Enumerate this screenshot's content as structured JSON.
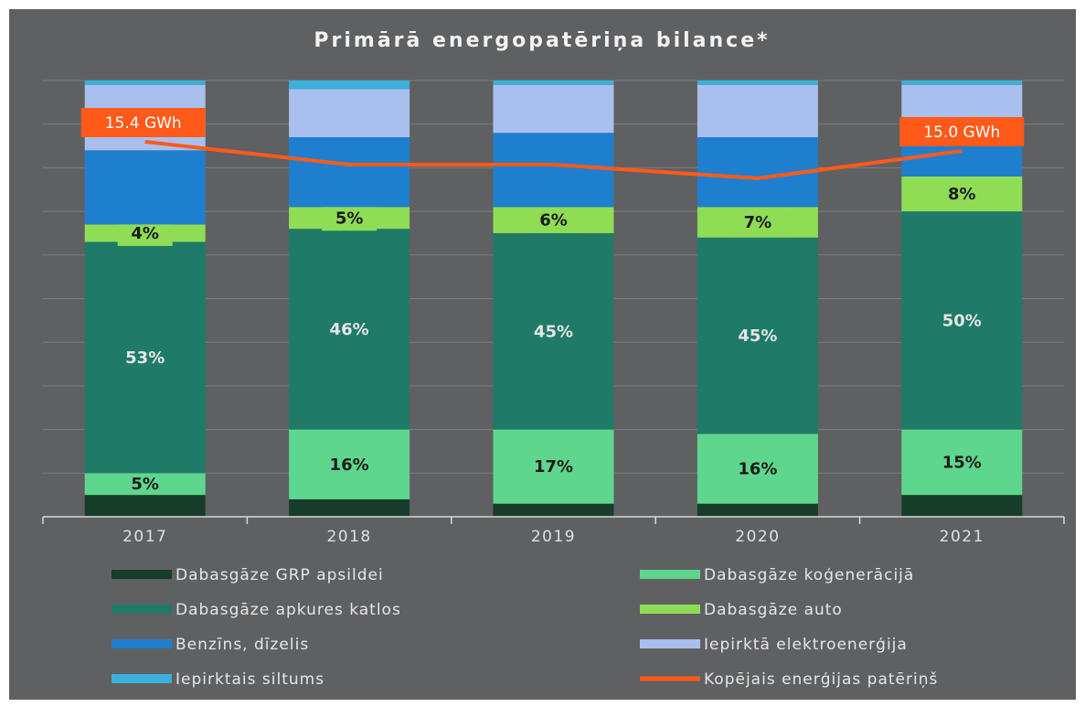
{
  "chart_data": {
    "type": "stacked_bar",
    "title": "Primārā energopatēriņa bilance*",
    "categories": [
      "2017",
      "2018",
      "2019",
      "2020",
      "2021"
    ],
    "ylim": [
      0,
      100
    ],
    "yticks": [
      0,
      10,
      20,
      30,
      40,
      50,
      60,
      70,
      80,
      90,
      100
    ],
    "grid": true,
    "legend": "bottom",
    "series": [
      {
        "name": "Dabasgāze GRP apsildei",
        "color": "#173d2a",
        "values": [
          5,
          4,
          3,
          3,
          5
        ]
      },
      {
        "name": "Dabasgāze koģenerācijā",
        "color": "#5fd68e",
        "values": [
          5,
          16,
          17,
          16,
          15
        ],
        "value_labels": [
          "5%",
          "16%",
          "17%",
          "16%",
          "15%"
        ]
      },
      {
        "name": "Dabasgāze apkures katlos",
        "color": "#1f7a68",
        "values": [
          53,
          46,
          45,
          45,
          50
        ],
        "value_labels": [
          "53%",
          "46%",
          "45%",
          "45%",
          "50%"
        ]
      },
      {
        "name": "Dabasgāze auto",
        "color": "#8fdc55",
        "values": [
          4,
          5,
          6,
          7,
          8
        ],
        "value_labels": [
          "4%",
          "5%",
          "6%",
          "7%",
          "8%"
        ]
      },
      {
        "name": "Benzīns, dīzelis",
        "color": "#1e7fcf",
        "values": [
          17,
          16,
          17,
          16,
          11
        ]
      },
      {
        "name": "Iepirktā elektroenerģija",
        "color": "#a9c0ef",
        "values": [
          15,
          11,
          11,
          12,
          10
        ]
      },
      {
        "name": "Iepirktais siltums",
        "color": "#3bb0d8",
        "values": [
          1,
          2,
          1,
          1,
          1
        ]
      },
      {
        "name": "Kopējais enerģijas patēriņš",
        "type": "line",
        "color": "#ff5a1a",
        "values": [
          15.4,
          14.4,
          14.4,
          13.8,
          15.0
        ],
        "value_labels": [
          "15.4 GWh",
          null,
          null,
          null,
          "15.0 GWh"
        ]
      }
    ]
  }
}
